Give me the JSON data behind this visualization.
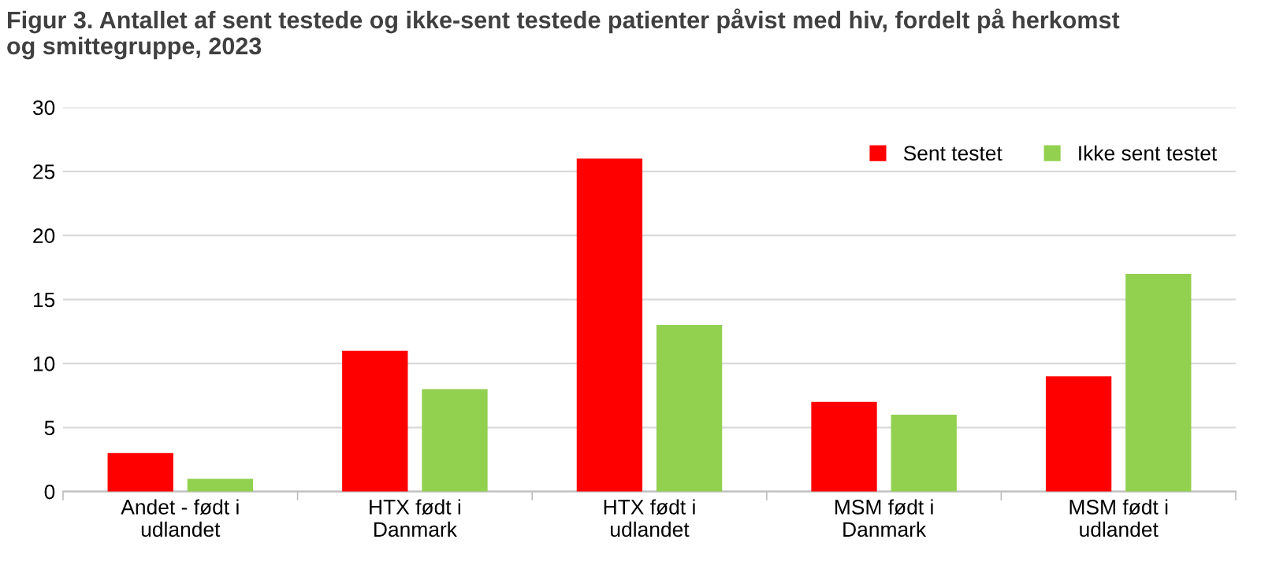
{
  "chart_data": {
    "type": "bar",
    "title": "Figur 3. Antallet af sent testede og ikke-sent testede patienter påvist med hiv, fordelt på herkomst\nog smittegruppe, 2023",
    "categories": [
      "Andet - født i\nudlandet",
      "HTX født i\nDanmark",
      "HTX født i\nudlandet",
      "MSM født i\nDanmark",
      "MSM født i\nudlandet"
    ],
    "series": [
      {
        "name": "Sent testet",
        "color": "#ff0000",
        "values": [
          3,
          11,
          26,
          7,
          9
        ]
      },
      {
        "name": "Ikke sent testet",
        "color": "#92d050",
        "values": [
          1,
          8,
          13,
          6,
          17
        ]
      }
    ],
    "ylim": [
      0,
      30
    ],
    "yticks": [
      0,
      5,
      10,
      15,
      20,
      25,
      30
    ],
    "grid": "y",
    "legend": "top right"
  }
}
